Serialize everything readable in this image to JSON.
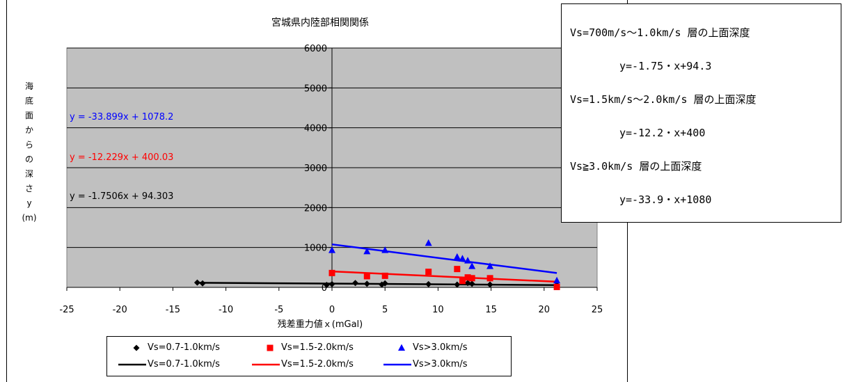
{
  "chart_data": {
    "type": "scatter",
    "title": "宮城県内陸部相関関係",
    "xlabel": "残差重力値ｘ(mGal)",
    "ylabel": [
      "海",
      "底",
      "面",
      "か",
      "ら",
      "の",
      "深",
      "さ",
      "y",
      "(m)"
    ],
    "xlim": [
      -25,
      25
    ],
    "ylim": [
      0,
      6000
    ],
    "x_ticks": [
      "-25",
      "-20",
      "-15",
      "-10",
      "-5",
      "0",
      "5",
      "10",
      "15",
      "20",
      "25"
    ],
    "y_ticks": [
      "0",
      "1000",
      "2000",
      "3000",
      "4000",
      "5000",
      "6000"
    ],
    "grid": true,
    "series": [
      {
        "name": "Vs=0.7-1.0km/s",
        "marker": "diamond",
        "color": "#000000",
        "points": [
          [
            -12.7,
            120
          ],
          [
            -12.2,
            100
          ],
          [
            -0.5,
            60
          ],
          [
            0,
            80
          ],
          [
            2.2,
            110
          ],
          [
            3.3,
            90
          ],
          [
            4.7,
            70
          ],
          [
            5.0,
            100
          ],
          [
            9.1,
            80
          ],
          [
            11.8,
            70
          ],
          [
            12.8,
            110
          ],
          [
            13.2,
            90
          ],
          [
            14.9,
            70
          ],
          [
            21.2,
            60
          ]
        ]
      },
      {
        "name": "Vs=1.5-2.0km/s",
        "marker": "square",
        "color": "#ff0000",
        "points": [
          [
            0,
            360
          ],
          [
            3.3,
            280
          ],
          [
            5.0,
            290
          ],
          [
            9.1,
            390
          ],
          [
            11.8,
            460
          ],
          [
            12.3,
            160
          ],
          [
            12.8,
            250
          ],
          [
            13.2,
            230
          ],
          [
            14.9,
            230
          ],
          [
            21.2,
            10
          ]
        ]
      },
      {
        "name": "Vs>3.0km/s",
        "marker": "triangle",
        "color": "#0000ff",
        "points": [
          [
            0,
            930
          ],
          [
            3.3,
            900
          ],
          [
            5.0,
            930
          ],
          [
            9.1,
            1110
          ],
          [
            11.8,
            760
          ],
          [
            12.3,
            720
          ],
          [
            12.8,
            670
          ],
          [
            13.2,
            530
          ],
          [
            14.9,
            530
          ],
          [
            21.2,
            170
          ]
        ]
      }
    ],
    "trendlines": [
      {
        "name": "Vs=0.7-1.0km/s",
        "color": "#000000",
        "slope": -1.7506,
        "intercept": 94.303,
        "x_range": [
          -12.7,
          21.2
        ],
        "equation": "y = -1.7506x + 94.303"
      },
      {
        "name": "Vs=1.5-2.0km/s",
        "color": "#ff0000",
        "slope": -12.229,
        "intercept": 400.03,
        "x_range": [
          0,
          21.2
        ],
        "equation": "y = -12.229x + 400.03"
      },
      {
        "name": "Vs>3.0km/s",
        "color": "#0000ff",
        "slope": -33.899,
        "intercept": 1078.2,
        "x_range": [
          0,
          21.2
        ],
        "equation": "y = -33.899x + 1078.2"
      }
    ],
    "colors": {
      "plot_bg": "#c0c0c0",
      "grid": "#000000"
    }
  },
  "infobox": {
    "lines": [
      "Vs=700m/s～1.0km/s 層の上面深度",
      "y=-1.75・x+94.3",
      "Vs=1.5km/s～2.0km/s 層の上面深度",
      "y=-12.2・x+400",
      "Vs≧3.0km/s 層の上面深度",
      "y=-33.9・x+1080"
    ]
  }
}
